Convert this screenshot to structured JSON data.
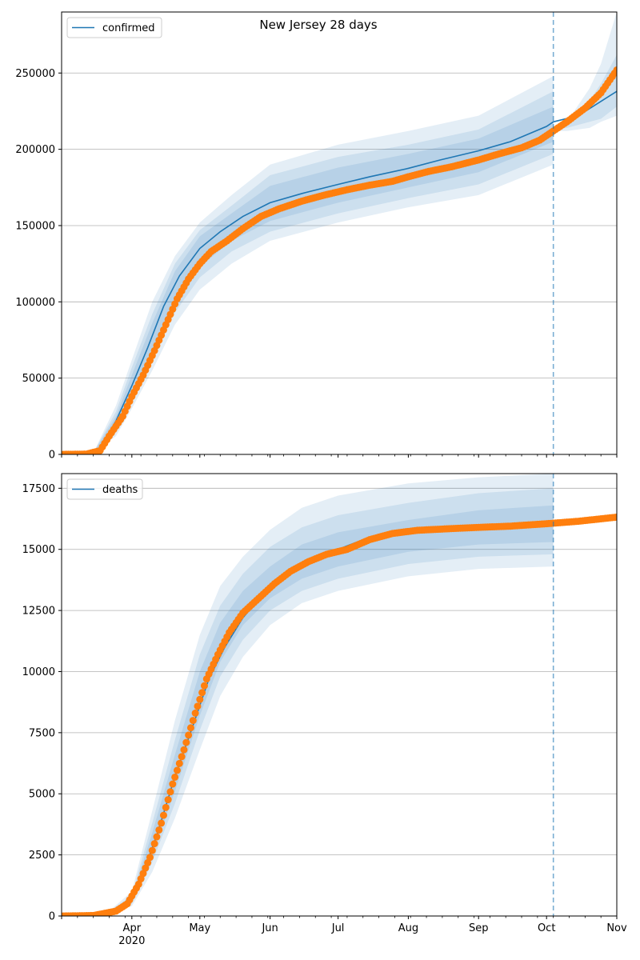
{
  "chart_data": [
    {
      "type": "line",
      "title": "New Jersey 28 days",
      "legend": {
        "label": "confirmed",
        "placement": "top-left"
      },
      "xlabel": "",
      "ylabel": "",
      "x_ticks": [
        "",
        "",
        "",
        "",
        "",
        "",
        "",
        "",
        "",
        ""
      ],
      "ylim": [
        0,
        290000
      ],
      "y_ticks": [
        0,
        50000,
        100000,
        150000,
        200000,
        250000
      ],
      "y_tick_labels": [
        "0",
        "50000",
        "100000",
        "150000",
        "200000",
        "250000"
      ],
      "grid": "horizontal",
      "forecast_start": "2020-10-04",
      "colors": {
        "model": "#1f77b4",
        "observed": "#ff7f0e",
        "band": "#1f77b4"
      },
      "model_curve": [
        [
          "2020-03-01",
          0
        ],
        [
          "2020-03-10",
          300
        ],
        [
          "2020-03-18",
          4000
        ],
        [
          "2020-03-25",
          22000
        ],
        [
          "2020-04-01",
          45000
        ],
        [
          "2020-04-08",
          70000
        ],
        [
          "2020-04-15",
          97000
        ],
        [
          "2020-04-22",
          117000
        ],
        [
          "2020-05-01",
          135000
        ],
        [
          "2020-05-10",
          146000
        ],
        [
          "2020-05-20",
          156000
        ],
        [
          "2020-06-01",
          165000
        ],
        [
          "2020-06-15",
          171000
        ],
        [
          "2020-07-01",
          177000
        ],
        [
          "2020-07-15",
          182000
        ],
        [
          "2020-08-01",
          187500
        ],
        [
          "2020-08-15",
          193000
        ],
        [
          "2020-09-01",
          199000
        ],
        [
          "2020-09-15",
          205000
        ],
        [
          "2020-10-01",
          215000
        ],
        [
          "2020-10-04",
          218000
        ],
        [
          "2020-10-15",
          222000
        ],
        [
          "2020-11-01",
          238000
        ]
      ],
      "bands": [
        {
          "opacity": 0.12,
          "points": [
            [
              "2020-03-15",
              1000,
              1000
            ],
            [
              "2020-03-25",
              12000,
              32000
            ],
            [
              "2020-04-01",
              30000,
              62000
            ],
            [
              "2020-04-10",
              55000,
              100000
            ],
            [
              "2020-04-20",
              85000,
              130000
            ],
            [
              "2020-05-01",
              108000,
              152000
            ],
            [
              "2020-05-15",
              125000,
              170000
            ],
            [
              "2020-06-01",
              140000,
              190000
            ],
            [
              "2020-07-01",
              152000,
              203000
            ],
            [
              "2020-08-01",
              162000,
              212000
            ],
            [
              "2020-09-01",
              170000,
              222000
            ],
            [
              "2020-10-04",
              190000,
              248000
            ]
          ]
        },
        {
          "opacity": 0.12,
          "points": [
            [
              "2020-03-15",
              1000,
              1000
            ],
            [
              "2020-03-25",
              15000,
              28000
            ],
            [
              "2020-04-01",
              35000,
              57000
            ],
            [
              "2020-04-10",
              62000,
              92000
            ],
            [
              "2020-04-20",
              93000,
              125000
            ],
            [
              "2020-05-01",
              116000,
              147000
            ],
            [
              "2020-05-15",
              133000,
              163000
            ],
            [
              "2020-06-01",
              146000,
              183000
            ],
            [
              "2020-07-01",
              158000,
              195000
            ],
            [
              "2020-08-01",
              168000,
              203000
            ],
            [
              "2020-09-01",
              177000,
              213000
            ],
            [
              "2020-10-04",
              197000,
              238000
            ]
          ]
        },
        {
          "opacity": 0.12,
          "points": [
            [
              "2020-03-15",
              1000,
              1000
            ],
            [
              "2020-03-25",
              18000,
              25000
            ],
            [
              "2020-04-01",
              39000,
              52000
            ],
            [
              "2020-04-10",
              68000,
              86000
            ],
            [
              "2020-04-20",
              100000,
              120000
            ],
            [
              "2020-05-01",
              123000,
              143000
            ],
            [
              "2020-05-15",
              140000,
              158000
            ],
            [
              "2020-06-01",
              153000,
              176000
            ],
            [
              "2020-07-01",
              165000,
              188000
            ],
            [
              "2020-08-01",
              175000,
              197000
            ],
            [
              "2020-09-01",
              185000,
              207000
            ],
            [
              "2020-10-04",
              205000,
              228000
            ]
          ]
        },
        {
          "opacity": 0.12,
          "points": [
            [
              "2020-10-04",
              212000,
              214000
            ],
            [
              "2020-10-10",
              212000,
              218000
            ],
            [
              "2020-10-20",
              214000,
              240000
            ],
            [
              "2020-10-25",
              218000,
              256000
            ],
            [
              "2020-11-01",
              222000,
              290000
            ]
          ]
        },
        {
          "opacity": 0.12,
          "points": [
            [
              "2020-10-04",
              213000,
              214000
            ],
            [
              "2020-10-10",
              214000,
              218000
            ],
            [
              "2020-10-20",
              218000,
              232000
            ],
            [
              "2020-10-25",
              220000,
              243000
            ],
            [
              "2020-11-01",
              228000,
              262000
            ]
          ]
        }
      ],
      "observed": [
        [
          "2020-03-01",
          0
        ],
        [
          "2020-03-12",
          200
        ],
        [
          "2020-03-18",
          2500
        ],
        [
          "2020-03-22",
          12000
        ],
        [
          "2020-03-28",
          25000
        ],
        [
          "2020-04-01",
          38000
        ],
        [
          "2020-04-06",
          52000
        ],
        [
          "2020-04-11",
          68000
        ],
        [
          "2020-04-16",
          85000
        ],
        [
          "2020-04-21",
          102000
        ],
        [
          "2020-04-26",
          115000
        ],
        [
          "2020-05-01",
          125000
        ],
        [
          "2020-05-06",
          133000
        ],
        [
          "2020-05-13",
          140000
        ],
        [
          "2020-05-20",
          148000
        ],
        [
          "2020-05-28",
          156000
        ],
        [
          "2020-06-05",
          161000
        ],
        [
          "2020-06-15",
          166000
        ],
        [
          "2020-06-25",
          170000
        ],
        [
          "2020-07-05",
          173500
        ],
        [
          "2020-07-15",
          176500
        ],
        [
          "2020-07-25",
          179000
        ],
        [
          "2020-08-01",
          182000
        ],
        [
          "2020-08-10",
          185500
        ],
        [
          "2020-08-20",
          188500
        ],
        [
          "2020-09-01",
          193000
        ],
        [
          "2020-09-10",
          197000
        ],
        [
          "2020-09-20",
          201000
        ],
        [
          "2020-09-28",
          206000
        ],
        [
          "2020-10-04",
          212000
        ],
        [
          "2020-10-10",
          218000
        ],
        [
          "2020-10-18",
          227000
        ],
        [
          "2020-10-25",
          237000
        ],
        [
          "2020-11-01",
          252000
        ]
      ]
    },
    {
      "type": "line",
      "title": "",
      "legend": {
        "label": "deaths",
        "placement": "top-left"
      },
      "xlabel": "",
      "ylabel": "",
      "x_ticks": [
        "",
        "Apr\n2020",
        "May",
        "Jun",
        "Jul",
        "Aug",
        "Sep",
        "Oct",
        "Nov"
      ],
      "x_tick_dates": [
        "2020-03-01",
        "2020-04-01",
        "2020-05-01",
        "2020-06-01",
        "2020-07-01",
        "2020-08-01",
        "2020-09-01",
        "2020-10-01",
        "2020-11-01"
      ],
      "ylim": [
        0,
        18100
      ],
      "y_ticks": [
        0,
        2500,
        5000,
        7500,
        10000,
        12500,
        15000,
        17500
      ],
      "y_tick_labels": [
        "0",
        "2500",
        "5000",
        "7500",
        "10000",
        "12500",
        "15000",
        "17500"
      ],
      "grid": "horizontal",
      "forecast_start": "2020-10-04",
      "colors": {
        "model": "#1f77b4",
        "observed": "#ff7f0e",
        "band": "#1f77b4"
      },
      "model_curve": [
        [
          "2020-03-01",
          0
        ],
        [
          "2020-03-20",
          100
        ],
        [
          "2020-03-28",
          400
        ],
        [
          "2020-04-05",
          1500
        ],
        [
          "2020-04-12",
          3300
        ],
        [
          "2020-04-20",
          5700
        ],
        [
          "2020-04-28",
          7800
        ],
        [
          "2020-05-05",
          9700
        ],
        [
          "2020-05-12",
          11000
        ],
        [
          "2020-05-20",
          12200
        ],
        [
          "2020-06-01",
          13500
        ],
        [
          "2020-06-15",
          14300
        ],
        [
          "2020-07-01",
          15000
        ],
        [
          "2020-07-15",
          15500
        ],
        [
          "2020-08-01",
          15700
        ],
        [
          "2020-09-01",
          15900
        ],
        [
          "2020-10-04",
          16000
        ]
      ],
      "bands": [
        {
          "opacity": 0.12,
          "points": [
            [
              "2020-03-20",
              50,
              50
            ],
            [
              "2020-04-01",
              400,
              1000
            ],
            [
              "2020-04-10",
              1800,
              4300
            ],
            [
              "2020-04-20",
              4000,
              8000
            ],
            [
              "2020-05-01",
              6800,
              11500
            ],
            [
              "2020-05-10",
              9000,
              13500
            ],
            [
              "2020-05-20",
              10600,
              14700
            ],
            [
              "2020-06-01",
              11900,
              15800
            ],
            [
              "2020-06-15",
              12800,
              16700
            ],
            [
              "2020-07-01",
              13300,
              17200
            ],
            [
              "2020-08-01",
              13900,
              17700
            ],
            [
              "2020-09-01",
              14200,
              17950
            ],
            [
              "2020-10-04",
              14300,
              18100
            ]
          ]
        },
        {
          "opacity": 0.12,
          "points": [
            [
              "2020-03-20",
              50,
              50
            ],
            [
              "2020-04-01",
              500,
              850
            ],
            [
              "2020-04-10",
              2200,
              3800
            ],
            [
              "2020-04-20",
              4600,
              7200
            ],
            [
              "2020-05-01",
              7600,
              10700
            ],
            [
              "2020-05-10",
              9800,
              12700
            ],
            [
              "2020-05-20",
              11300,
              14000
            ],
            [
              "2020-06-01",
              12500,
              15100
            ],
            [
              "2020-06-15",
              13300,
              15900
            ],
            [
              "2020-07-01",
              13800,
              16400
            ],
            [
              "2020-08-01",
              14400,
              16900
            ],
            [
              "2020-09-01",
              14700,
              17300
            ],
            [
              "2020-10-04",
              14800,
              17500
            ]
          ]
        },
        {
          "opacity": 0.12,
          "points": [
            [
              "2020-03-20",
              50,
              50
            ],
            [
              "2020-04-01",
              550,
              750
            ],
            [
              "2020-04-10",
              2500,
              3400
            ],
            [
              "2020-04-20",
              5100,
              6600
            ],
            [
              "2020-05-01",
              8200,
              10000
            ],
            [
              "2020-05-10",
              10400,
              12000
            ],
            [
              "2020-05-20",
              11900,
              13300
            ],
            [
              "2020-06-01",
              13000,
              14300
            ],
            [
              "2020-06-15",
              13800,
              15200
            ],
            [
              "2020-07-01",
              14300,
              15700
            ],
            [
              "2020-08-01",
              14900,
              16200
            ],
            [
              "2020-09-01",
              15200,
              16600
            ],
            [
              "2020-10-04",
              15300,
              16800
            ]
          ]
        }
      ],
      "observed": [
        [
          "2020-03-01",
          0
        ],
        [
          "2020-03-15",
          20
        ],
        [
          "2020-03-25",
          200
        ],
        [
          "2020-03-30",
          500
        ],
        [
          "2020-04-04",
          1300
        ],
        [
          "2020-04-09",
          2400
        ],
        [
          "2020-04-14",
          3800
        ],
        [
          "2020-04-19",
          5400
        ],
        [
          "2020-04-24",
          6800
        ],
        [
          "2020-04-29",
          8300
        ],
        [
          "2020-05-04",
          9700
        ],
        [
          "2020-05-09",
          10700
        ],
        [
          "2020-05-14",
          11600
        ],
        [
          "2020-05-20",
          12400
        ],
        [
          "2020-05-27",
          13000
        ],
        [
          "2020-06-03",
          13600
        ],
        [
          "2020-06-10",
          14100
        ],
        [
          "2020-06-18",
          14500
        ],
        [
          "2020-06-26",
          14800
        ],
        [
          "2020-07-05",
          15000
        ],
        [
          "2020-07-15",
          15400
        ],
        [
          "2020-07-25",
          15650
        ],
        [
          "2020-08-05",
          15780
        ],
        [
          "2020-08-20",
          15850
        ],
        [
          "2020-09-01",
          15900
        ],
        [
          "2020-09-15",
          15950
        ],
        [
          "2020-10-01",
          16050
        ],
        [
          "2020-10-15",
          16150
        ],
        [
          "2020-11-01",
          16320
        ]
      ]
    }
  ]
}
